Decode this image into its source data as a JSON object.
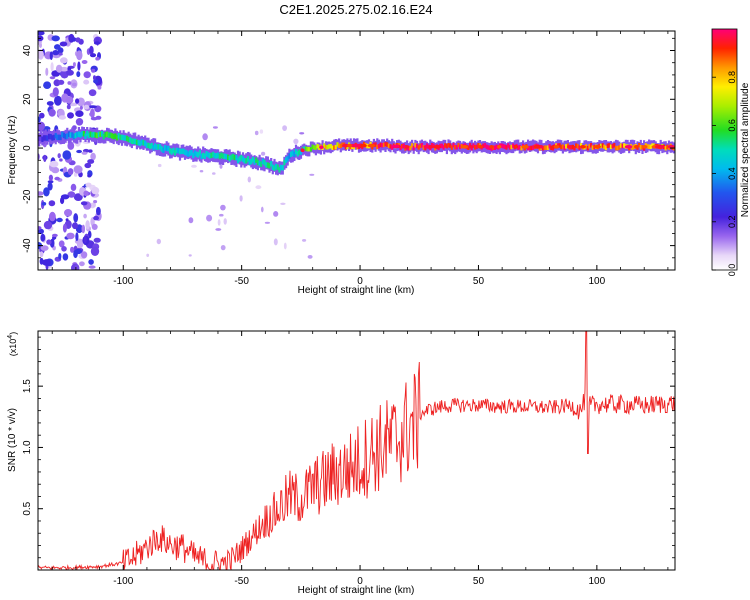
{
  "title": "C2E1.2025.275.02.16.E24",
  "colors": {
    "background": "#ffffff",
    "axes": "#000000",
    "snr_line": "#ee2222",
    "ridge_purple": "#5522ee",
    "scatter_purple": "#7744ee"
  },
  "chart_data": [
    {
      "id": "spectrogram",
      "type": "heatmap",
      "title": "C2E1.2025.275.02.16.E24",
      "xlabel": "Height of straight line (km)",
      "ylabel": "Frequency (Hz)",
      "xlim": [
        -136,
        133
      ],
      "ylim": [
        -50,
        48
      ],
      "x_ticks": [
        -100,
        -50,
        0,
        50,
        100
      ],
      "x_tick_labels": [
        "-100",
        "-50",
        "0",
        "50",
        "100"
      ],
      "y_ticks": [
        -40,
        -20,
        0,
        20,
        40
      ],
      "y_tick_labels": [
        "-40",
        "-20",
        "0",
        "20",
        "40"
      ],
      "grid": false,
      "colorscale": "rainbow (white-purple-blue-cyan-green-yellow-orange-red-magenta)",
      "colorbar": {
        "label": "Normalized spectral amplitude",
        "range": [
          0,
          1
        ],
        "ticks": [
          0.0,
          0.2,
          0.4,
          0.6,
          0.8
        ],
        "tick_labels": [
          "0.0",
          "0.2",
          "0.4",
          "0.6",
          "0.8"
        ]
      },
      "ridge": {
        "x": [
          -136,
          -125,
          -115,
          -105,
          -95,
          -85,
          -75,
          -65,
          -55,
          -48,
          -42,
          -38,
          -34,
          -30,
          -25,
          -20,
          -10,
          0,
          10,
          20,
          40,
          60,
          80,
          100,
          120,
          133
        ],
        "y": [
          4,
          5,
          5.5,
          5,
          3,
          0,
          -2,
          -3,
          -4,
          -5,
          -6,
          -7,
          -9,
          -3,
          -1,
          0,
          1,
          1,
          1,
          0.5,
          0.5,
          0.5,
          0.5,
          0.5,
          0.5,
          0.5
        ],
        "peak_amplitude": [
          0.2,
          0.35,
          0.55,
          0.55,
          0.5,
          0.45,
          0.45,
          0.5,
          0.5,
          0.5,
          0.5,
          0.5,
          0.5,
          0.4,
          0.5,
          0.7,
          0.8,
          0.85,
          0.9,
          0.95,
          1.0,
          0.95,
          0.9,
          0.85,
          0.85,
          0.8
        ]
      },
      "scatter_region_x": [
        -136,
        -110
      ]
    },
    {
      "id": "snr",
      "type": "line",
      "xlabel": "Height of straight line (km)",
      "ylabel": "SNR (10 * v/v)",
      "y_multiplier": "(x10^4)",
      "xlim": [
        -136,
        133
      ],
      "ylim": [
        0,
        1.95
      ],
      "x_ticks": [
        -100,
        -50,
        0,
        50,
        100
      ],
      "x_tick_labels": [
        "-100",
        "-50",
        "0",
        "50",
        "100"
      ],
      "y_ticks": [
        0.5,
        1.0,
        1.5
      ],
      "y_tick_labels": [
        "0.5",
        "1.0",
        "1.5"
      ],
      "grid": false,
      "series": [
        {
          "x": [
            -136,
            -125,
            -110,
            -100,
            -95,
            -90,
            -85,
            -80,
            -75,
            -70,
            -65,
            -60,
            -55,
            -50,
            -45,
            -40,
            -35,
            -30,
            -25,
            -20,
            -15,
            -10,
            -5,
            0,
            5,
            10,
            15,
            20,
            25,
            30,
            35,
            40,
            50,
            60,
            70,
            80,
            85,
            90,
            93,
            95,
            97,
            100,
            110,
            120,
            133
          ],
          "y": [
            0.02,
            0.02,
            0.03,
            0.06,
            0.12,
            0.2,
            0.28,
            0.22,
            0.2,
            0.12,
            0.08,
            0.06,
            0.08,
            0.18,
            0.3,
            0.42,
            0.5,
            0.62,
            0.6,
            0.7,
            0.75,
            0.82,
            0.85,
            0.92,
            1.0,
            1.05,
            1.1,
            1.2,
            1.28,
            1.32,
            1.34,
            1.35,
            1.35,
            1.34,
            1.34,
            1.33,
            1.34,
            1.35,
            1.3,
            1.4,
            1.35,
            1.36,
            1.36,
            1.35,
            1.37
          ]
        }
      ]
    }
  ]
}
